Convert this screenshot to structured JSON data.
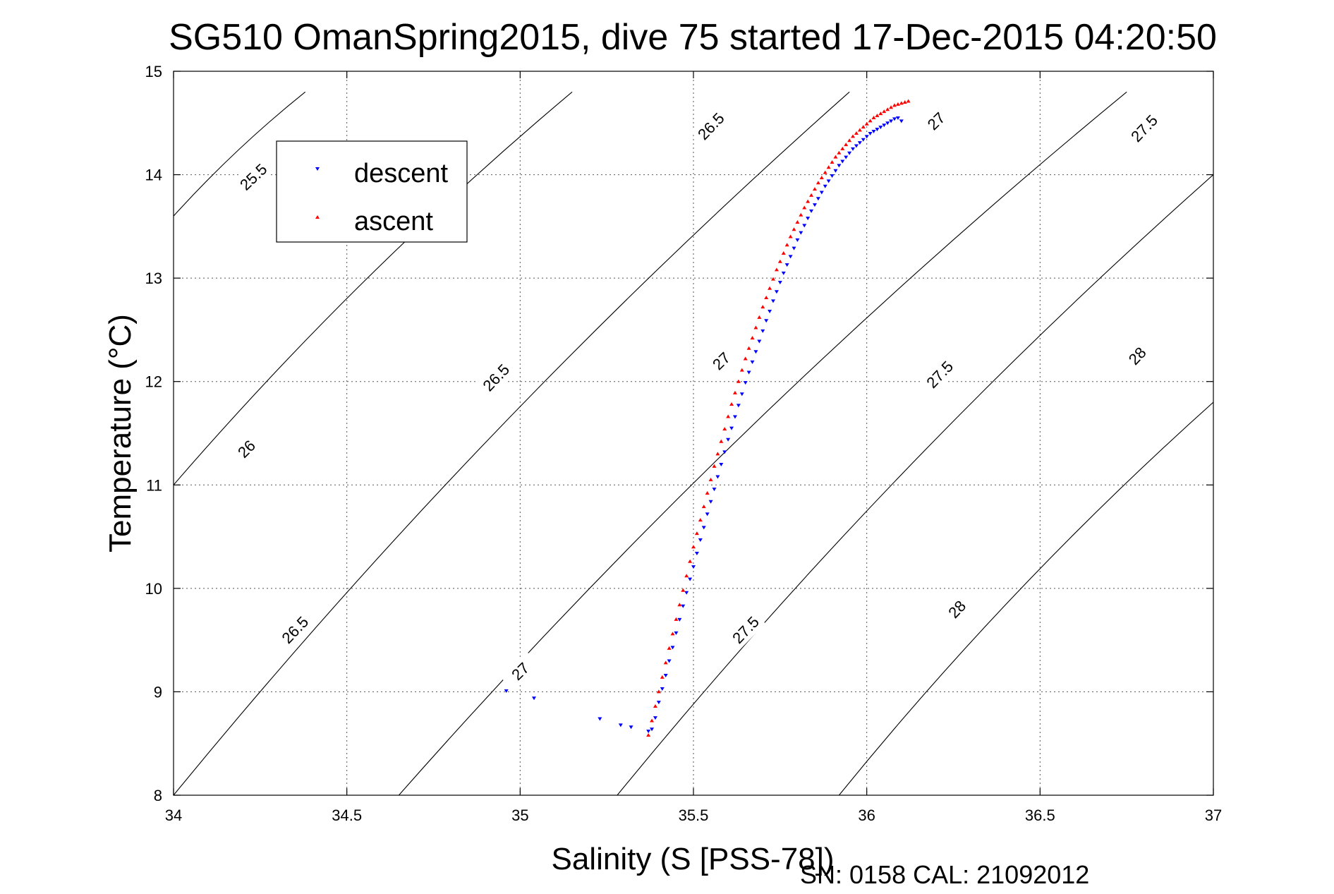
{
  "chart_data": {
    "type": "scatter",
    "title": "SG510 OmanSpring2015, dive 75 started 17-Dec-2015 04:20:50",
    "xlabel": "Salinity (S [PSS-78])",
    "ylabel": "Temperature (°C)",
    "footer": "SN: 0158  CAL: 21092012",
    "xlim": [
      34,
      37
    ],
    "ylim": [
      8,
      15
    ],
    "xticks": [
      "34",
      "34.5",
      "35",
      "35.5",
      "36",
      "36.5",
      "37"
    ],
    "yticks": [
      "8",
      "9",
      "10",
      "11",
      "12",
      "13",
      "14",
      "15"
    ],
    "grid": true,
    "legend_position": "top-left",
    "series": [
      {
        "name": "descent",
        "color": "#0000ff",
        "marker": "triangle-down",
        "x": [
          34.96,
          35.04,
          35.23,
          35.29,
          35.32,
          35.37,
          35.38,
          35.39,
          35.4,
          35.41,
          35.42,
          35.43,
          35.44,
          35.45,
          35.46,
          35.47,
          35.48,
          35.49,
          35.5,
          35.51,
          35.52,
          35.53,
          35.54,
          35.55,
          35.56,
          35.57,
          35.58,
          35.59,
          35.6,
          35.61,
          35.62,
          35.63,
          35.64,
          35.65,
          35.66,
          35.67,
          35.68,
          35.69,
          35.7,
          35.71,
          35.72,
          35.73,
          35.74,
          35.75,
          35.76,
          35.77,
          35.78,
          35.79,
          35.8,
          35.81,
          35.82,
          35.83,
          35.84,
          35.85,
          35.86,
          35.87,
          35.88,
          35.89,
          35.9,
          35.91,
          35.92,
          35.93,
          35.94,
          35.95,
          35.96,
          35.97,
          35.98,
          35.99,
          36.0,
          36.01,
          36.02,
          36.03,
          36.04,
          36.05,
          36.06,
          36.07,
          36.08,
          36.09,
          36.1
        ],
        "y": [
          9.01,
          8.94,
          8.74,
          8.68,
          8.66,
          8.62,
          8.64,
          8.75,
          8.9,
          9.03,
          9.16,
          9.3,
          9.43,
          9.57,
          9.7,
          9.83,
          9.96,
          10.09,
          10.21,
          10.34,
          10.47,
          10.59,
          10.72,
          10.84,
          10.96,
          11.08,
          11.2,
          11.32,
          11.44,
          11.55,
          11.66,
          11.77,
          11.88,
          11.99,
          12.09,
          12.19,
          12.29,
          12.39,
          12.49,
          12.59,
          12.68,
          12.78,
          12.87,
          12.96,
          13.05,
          13.13,
          13.21,
          13.29,
          13.37,
          13.44,
          13.51,
          13.58,
          13.65,
          13.71,
          13.77,
          13.83,
          13.89,
          13.94,
          13.99,
          14.04,
          14.09,
          14.13,
          14.17,
          14.21,
          14.25,
          14.28,
          14.31,
          14.34,
          14.37,
          14.4,
          14.42,
          14.44,
          14.46,
          14.48,
          14.5,
          14.52,
          14.54,
          14.55,
          14.52
        ]
      },
      {
        "name": "ascent",
        "color": "#ff0000",
        "marker": "triangle-up",
        "x": [
          35.37,
          35.38,
          35.39,
          35.4,
          35.41,
          35.42,
          35.43,
          35.44,
          35.45,
          35.46,
          35.47,
          35.48,
          35.49,
          35.5,
          35.51,
          35.52,
          35.53,
          35.54,
          35.55,
          35.56,
          35.57,
          35.58,
          35.59,
          35.6,
          35.61,
          35.62,
          35.63,
          35.64,
          35.65,
          35.66,
          35.67,
          35.68,
          35.69,
          35.7,
          35.71,
          35.72,
          35.73,
          35.74,
          35.75,
          35.76,
          35.77,
          35.78,
          35.79,
          35.8,
          35.81,
          35.82,
          35.83,
          35.84,
          35.85,
          35.86,
          35.87,
          35.88,
          35.89,
          35.9,
          35.91,
          35.92,
          35.93,
          35.94,
          35.95,
          35.96,
          35.97,
          35.98,
          35.99,
          36.0,
          36.01,
          36.02,
          36.03,
          36.04,
          36.05,
          36.06,
          36.07,
          36.08,
          36.09,
          36.1,
          36.11,
          36.12
        ],
        "y": [
          8.58,
          8.72,
          8.86,
          9.0,
          9.14,
          9.28,
          9.42,
          9.56,
          9.7,
          9.84,
          9.98,
          10.12,
          10.26,
          10.4,
          10.53,
          10.66,
          10.79,
          10.92,
          11.05,
          11.18,
          11.3,
          11.42,
          11.54,
          11.66,
          11.78,
          11.89,
          12.0,
          12.11,
          12.22,
          12.32,
          12.42,
          12.52,
          12.62,
          12.72,
          12.81,
          12.9,
          12.99,
          13.08,
          13.16,
          13.24,
          13.32,
          13.4,
          13.47,
          13.54,
          13.61,
          13.68,
          13.74,
          13.8,
          13.86,
          13.92,
          13.97,
          14.02,
          14.07,
          14.12,
          14.17,
          14.21,
          14.25,
          14.29,
          14.33,
          14.37,
          14.4,
          14.43,
          14.46,
          14.49,
          14.52,
          14.55,
          14.57,
          14.59,
          14.61,
          14.63,
          14.65,
          14.67,
          14.68,
          14.69,
          14.7,
          14.71
        ]
      }
    ],
    "density_contours": {
      "levels": [
        "25.5",
        "26",
        "26.5",
        "27",
        "27.5",
        "28"
      ],
      "lines": [
        {
          "label": "25.5",
          "from": [
            34.0,
            13.6
          ],
          "to": [
            34.38,
            14.8
          ],
          "label_at": [
            34.23,
            13.98
          ]
        },
        {
          "label": "26",
          "from": [
            34.0,
            11.0
          ],
          "to": [
            35.15,
            14.8
          ],
          "label_at": [
            34.21,
            11.35
          ]
        },
        {
          "label": "26.5",
          "from": [
            34.0,
            8.0
          ],
          "to": [
            35.95,
            14.8
          ],
          "label_at": [
            34.35,
            9.6
          ],
          "label_at_2": [
            34.93,
            12.04
          ],
          "label_at_3": [
            35.55,
            14.47
          ]
        },
        {
          "label": "27",
          "from": [
            34.65,
            8.0
          ],
          "to": [
            36.75,
            14.8
          ],
          "label_at": [
            35.0,
            9.2
          ],
          "label_at_2": [
            35.58,
            12.2
          ],
          "label_at_3": [
            36.2,
            14.52
          ]
        },
        {
          "label": "27.5",
          "from": [
            35.28,
            8.0
          ],
          "to": [
            37.0,
            14.0
          ],
          "label_at": [
            35.65,
            9.6
          ],
          "label_at_2": [
            36.21,
            12.07
          ],
          "label_at_3": [
            36.8,
            14.45
          ]
        },
        {
          "label": "28",
          "from": [
            35.92,
            8.0
          ],
          "to": [
            37.0,
            11.8
          ],
          "label_at": [
            36.26,
            9.8
          ],
          "label_at_2": [
            36.78,
            12.25
          ]
        }
      ]
    }
  }
}
